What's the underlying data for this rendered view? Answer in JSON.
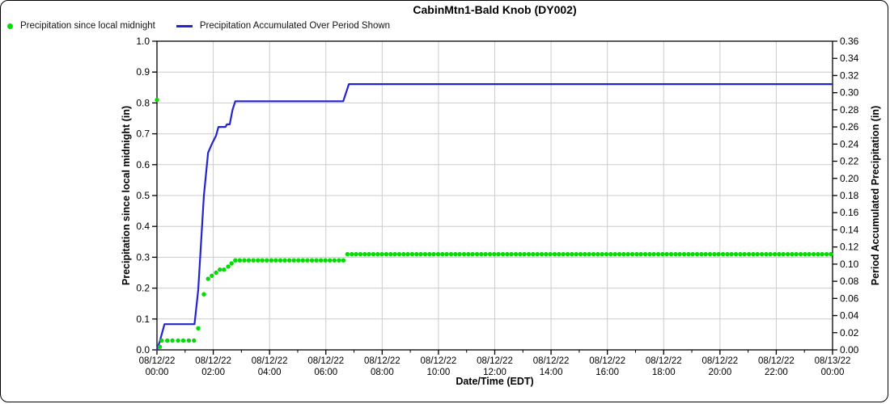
{
  "title": "CabinMtn1-Bald Knob (DY002)",
  "legend": [
    {
      "label": "Precipitation since local midnight",
      "marker": "dot",
      "color": "#00dd00"
    },
    {
      "label": "Precipitation Accumulated Over Period Shown",
      "marker": "line",
      "color": "#2323d0"
    }
  ],
  "axes": {
    "x": {
      "label": "Date/Time (EDT)",
      "total_minutes": 1440,
      "major_tick_minutes": 120,
      "minor_tick_minutes": 60,
      "ticks": [
        {
          "date": "08/12/22",
          "time": "00:00"
        },
        {
          "date": "08/12/22",
          "time": "02:00"
        },
        {
          "date": "08/12/22",
          "time": "04:00"
        },
        {
          "date": "08/12/22",
          "time": "06:00"
        },
        {
          "date": "08/12/22",
          "time": "08:00"
        },
        {
          "date": "08/12/22",
          "time": "10:00"
        },
        {
          "date": "08/12/22",
          "time": "12:00"
        },
        {
          "date": "08/12/22",
          "time": "14:00"
        },
        {
          "date": "08/12/22",
          "time": "16:00"
        },
        {
          "date": "08/12/22",
          "time": "18:00"
        },
        {
          "date": "08/12/22",
          "time": "20:00"
        },
        {
          "date": "08/12/22",
          "time": "22:00"
        },
        {
          "date": "08/13/22",
          "time": "00:00"
        }
      ]
    },
    "y_left": {
      "label": "Precipitation since local midnight (in)",
      "min": 0.0,
      "max": 1.0,
      "step": 0.1,
      "decimals": 1
    },
    "y_right": {
      "label": "Period Accumulated Precipitation (in)",
      "min": 0.0,
      "max": 0.36,
      "step": 0.02,
      "decimals": 2
    }
  },
  "colors": {
    "grid": "#cccccc",
    "frame": "#000000",
    "green_series": "#00dd00",
    "blue_series": "#2323d0",
    "background": "#ffffff"
  },
  "chart_data": {
    "type": "line",
    "title": "CabinMtn1-Bald Knob (DY002)",
    "xlabel": "Date/Time (EDT)",
    "x_unit": "minutes after 08/12/22 00:00 EDT",
    "grid": true,
    "legend_position": "top-left",
    "series": [
      {
        "name": "Precipitation since local midnight",
        "axis": "left",
        "style": "scatter",
        "units": "in",
        "points": [
          [
            0,
            0.81
          ],
          [
            6,
            0.01
          ],
          [
            10,
            0.03
          ],
          [
            22,
            0.03
          ],
          [
            33,
            0.03
          ],
          [
            45,
            0.03
          ],
          [
            56,
            0.03
          ],
          [
            68,
            0.03
          ],
          [
            79,
            0.03
          ],
          [
            88,
            0.07
          ],
          [
            100,
            0.18
          ],
          [
            109,
            0.23
          ],
          [
            117,
            0.24
          ],
          [
            126,
            0.25
          ],
          [
            134,
            0.26
          ],
          [
            143,
            0.26
          ],
          [
            152,
            0.27
          ],
          [
            159,
            0.28
          ]
        ],
        "runs": [
          {
            "start": 167,
            "end": 398,
            "step": 9.6,
            "value": 0.29
          },
          {
            "start": 406,
            "end": 1438,
            "step": 9.2,
            "value": 0.31
          }
        ]
      },
      {
        "name": "Precipitation Accumulated Over Period Shown",
        "axis": "right",
        "style": "line",
        "units": "in",
        "points": [
          [
            0,
            0.0
          ],
          [
            6,
            0.01
          ],
          [
            16,
            0.03
          ],
          [
            80,
            0.03
          ],
          [
            88,
            0.07
          ],
          [
            100,
            0.18
          ],
          [
            109,
            0.23
          ],
          [
            117,
            0.24
          ],
          [
            126,
            0.25
          ],
          [
            131,
            0.26
          ],
          [
            146,
            0.26
          ],
          [
            149,
            0.263
          ],
          [
            155,
            0.263
          ],
          [
            161,
            0.28
          ],
          [
            167,
            0.29
          ],
          [
            397,
            0.29
          ],
          [
            409,
            0.31
          ],
          [
            1440,
            0.31
          ]
        ]
      }
    ]
  }
}
